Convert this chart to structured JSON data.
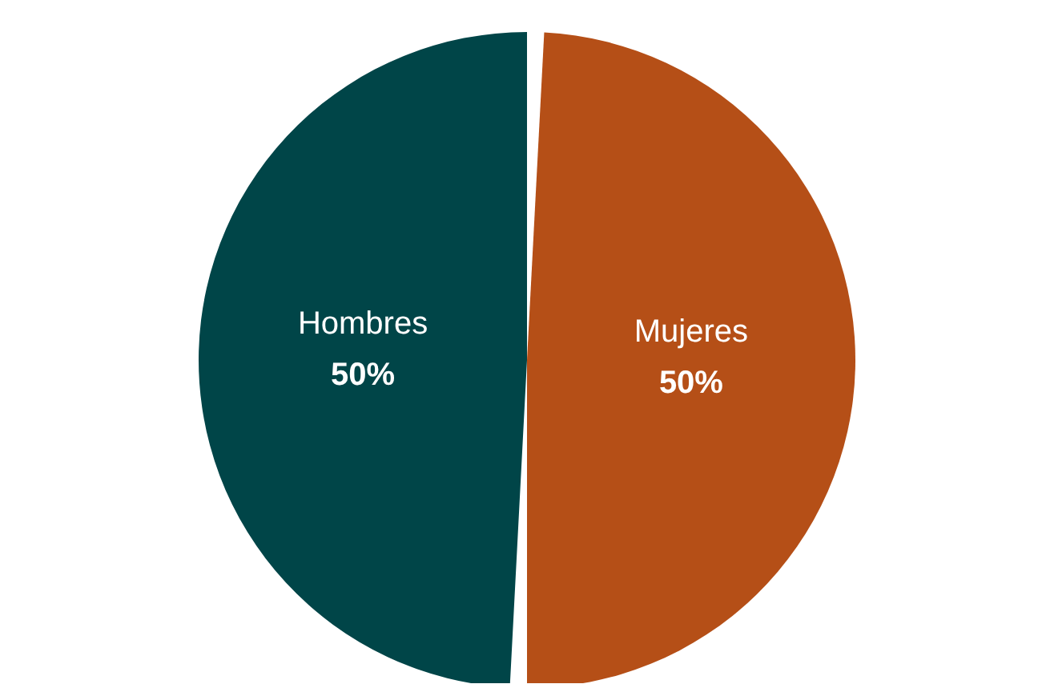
{
  "chart_data": {
    "type": "pie",
    "categories": [
      "Hombres",
      "Mujeres"
    ],
    "values": [
      50,
      50
    ],
    "colors": [
      "#004548",
      "#b54f17"
    ],
    "value_labels": [
      "50%",
      "50%"
    ],
    "legend": false
  }
}
